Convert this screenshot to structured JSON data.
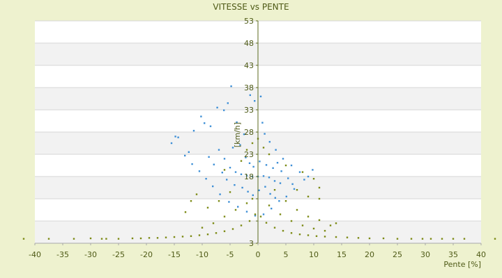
{
  "chart_data": {
    "type": "scatter",
    "title": "VITESSE vs PENTE",
    "xlabel": "Pente [%]",
    "ylabel": "[km/h]",
    "xlim": [
      -40,
      40
    ],
    "ylim": [
      3,
      53
    ],
    "x_ticks": [
      -40,
      -35,
      -30,
      -25,
      -20,
      -15,
      -10,
      -5,
      0,
      5,
      10,
      15,
      20,
      25,
      30,
      35,
      40
    ],
    "y_ticks": [
      3,
      8,
      13,
      18,
      23,
      28,
      33,
      38,
      43,
      48,
      53
    ],
    "y_tick_labels_shown": [
      "3",
      "18",
      "23",
      "28",
      "33",
      "38",
      "43",
      "48",
      "53"
    ],
    "grid": true,
    "colors": {
      "background": "#eef2cf",
      "plot_band_light": "#ffffff",
      "plot_band_dark": "#f2f2f2",
      "axis": "#5b6a1d",
      "series_blue": "#3d8fd6",
      "series_olive": "#7c8a14"
    },
    "series": [
      {
        "color": "#3d8fd6",
        "marker": "dot",
        "note_points": "dense cluster centered near (0, 18), spread x≈-16..10, y≈8..38",
        "points": [
          [
            -15.5,
            25.5
          ],
          [
            -14.8,
            27.0
          ],
          [
            -14.3,
            26.8
          ],
          [
            -13.1,
            22.7
          ],
          [
            -11.5,
            28.3
          ],
          [
            -10.2,
            31.5
          ],
          [
            -9.6,
            30.0
          ],
          [
            -8.5,
            29.3
          ],
          [
            -7.3,
            33.5
          ],
          [
            -6.1,
            32.9
          ],
          [
            -5.4,
            34.5
          ],
          [
            -4.8,
            38.3
          ],
          [
            -3.8,
            30.2
          ],
          [
            -2.5,
            27.5
          ],
          [
            -1.4,
            36.3
          ],
          [
            -0.6,
            35.0
          ],
          [
            0.5,
            36.0
          ],
          [
            0.8,
            30.1
          ],
          [
            1.2,
            27.6
          ],
          [
            2.1,
            25.8
          ],
          [
            3.2,
            24.0
          ],
          [
            4.5,
            22.0
          ],
          [
            6.0,
            20.5
          ],
          [
            7.5,
            19.0
          ],
          [
            9.0,
            18.0
          ],
          [
            9.8,
            19.5
          ],
          [
            8.3,
            17.3
          ],
          [
            6.5,
            15.2
          ],
          [
            5.1,
            13.5
          ],
          [
            3.8,
            12.5
          ],
          [
            2.4,
            10.8
          ],
          [
            1.0,
            9.5
          ],
          [
            -0.5,
            9.2
          ],
          [
            -2.0,
            10.1
          ],
          [
            -3.6,
            11.2
          ],
          [
            -5.2,
            12.3
          ],
          [
            -6.8,
            14.0
          ],
          [
            -8.1,
            15.8
          ],
          [
            -9.3,
            17.5
          ],
          [
            -10.5,
            19.2
          ],
          [
            -11.8,
            20.8
          ],
          [
            -12.4,
            23.5
          ],
          [
            -7.0,
            24.0
          ],
          [
            -6.0,
            22.0
          ],
          [
            -5.0,
            20.0
          ],
          [
            -4.0,
            19.0
          ],
          [
            -3.0,
            18.5
          ],
          [
            -2.0,
            18.2
          ],
          [
            -1.0,
            18.0
          ],
          [
            0.0,
            18.0
          ],
          [
            1.0,
            18.1
          ],
          [
            2.0,
            17.8
          ],
          [
            3.0,
            17.0
          ],
          [
            4.0,
            16.5
          ],
          [
            -4.5,
            24.5
          ],
          [
            -3.2,
            25.1
          ],
          [
            -2.2,
            22.3
          ],
          [
            -1.5,
            21.0
          ],
          [
            -0.8,
            20.2
          ],
          [
            0.3,
            21.4
          ],
          [
            1.5,
            20.6
          ],
          [
            2.7,
            19.9
          ],
          [
            3.5,
            21.1
          ],
          [
            4.2,
            19.2
          ],
          [
            5.4,
            17.6
          ],
          [
            6.2,
            16.3
          ],
          [
            -2.8,
            15.5
          ],
          [
            -1.8,
            14.6
          ],
          [
            -0.9,
            13.8
          ],
          [
            0.2,
            14.9
          ],
          [
            1.3,
            15.7
          ],
          [
            2.2,
            14.1
          ],
          [
            3.1,
            13.2
          ],
          [
            -4.2,
            16.1
          ],
          [
            -5.6,
            17.3
          ],
          [
            -6.4,
            18.9
          ],
          [
            -7.9,
            20.7
          ],
          [
            -8.8,
            22.4
          ]
        ]
      },
      {
        "color": "#7c8a14",
        "marker": "dot",
        "note_points": "band along y≈4..8 spanning x≈-42..43 plus arcs rising toward x=0",
        "points": [
          [
            -42,
            4.0
          ],
          [
            -37.5,
            4.0
          ],
          [
            -33,
            4.0
          ],
          [
            -30,
            4.1
          ],
          [
            -28,
            4.0
          ],
          [
            -27.2,
            4.0
          ],
          [
            -25,
            4.0
          ],
          [
            -22.5,
            4.1
          ],
          [
            -21,
            4.1
          ],
          [
            -19.5,
            4.2
          ],
          [
            -18,
            4.2
          ],
          [
            -16.5,
            4.3
          ],
          [
            -15,
            4.4
          ],
          [
            -13.5,
            4.5
          ],
          [
            -12,
            4.6
          ],
          [
            -10.5,
            4.8
          ],
          [
            -9,
            5.0
          ],
          [
            -7.5,
            5.3
          ],
          [
            -6,
            5.7
          ],
          [
            -4.5,
            6.2
          ],
          [
            -3,
            7.0
          ],
          [
            -1.5,
            8.0
          ],
          [
            -0.5,
            9.5
          ],
          [
            0.5,
            9.0
          ],
          [
            1.5,
            7.6
          ],
          [
            3,
            6.5
          ],
          [
            4.5,
            5.8
          ],
          [
            6,
            5.3
          ],
          [
            7.5,
            5.0
          ],
          [
            9,
            4.8
          ],
          [
            10.5,
            4.6
          ],
          [
            12,
            4.5
          ],
          [
            14,
            4.4
          ],
          [
            16,
            4.3
          ],
          [
            18,
            4.2
          ],
          [
            20,
            4.1
          ],
          [
            22.5,
            4.1
          ],
          [
            25,
            4.0
          ],
          [
            27.5,
            4.0
          ],
          [
            29.5,
            4.0
          ],
          [
            31,
            4.0
          ],
          [
            33,
            4.0
          ],
          [
            35,
            4.0
          ],
          [
            37,
            4.0
          ],
          [
            42.5,
            4.0
          ],
          [
            -10,
            6.5
          ],
          [
            -8,
            7.5
          ],
          [
            -6,
            9.0
          ],
          [
            -4,
            10.5
          ],
          [
            -2,
            12.0
          ],
          [
            -1,
            13.0
          ],
          [
            -13,
            10.0
          ],
          [
            -12,
            12.5
          ],
          [
            -11,
            14.0
          ],
          [
            -9,
            11.0
          ],
          [
            -7,
            12.5
          ],
          [
            -5,
            14.5
          ],
          [
            2,
            11.5
          ],
          [
            4,
            9.5
          ],
          [
            6,
            8.0
          ],
          [
            8,
            7.0
          ],
          [
            10,
            6.3
          ],
          [
            12,
            5.8
          ],
          [
            14,
            7.5
          ],
          [
            3,
            15.0
          ],
          [
            5,
            12.5
          ],
          [
            7,
            10.5
          ],
          [
            9,
            9.0
          ],
          [
            11,
            8.2
          ],
          [
            13,
            7.0
          ],
          [
            -1,
            25.5
          ],
          [
            0,
            26.5
          ],
          [
            1,
            24.5
          ],
          [
            2,
            23.0
          ],
          [
            -2,
            24.0
          ],
          [
            5,
            20.5
          ],
          [
            8,
            19.0
          ],
          [
            10,
            17.5
          ],
          [
            11,
            15.5
          ],
          [
            11,
            13.0
          ],
          [
            9,
            13.5
          ],
          [
            7,
            15.0
          ],
          [
            -3,
            21.5
          ],
          [
            -6,
            19.5
          ]
        ]
      }
    ]
  }
}
